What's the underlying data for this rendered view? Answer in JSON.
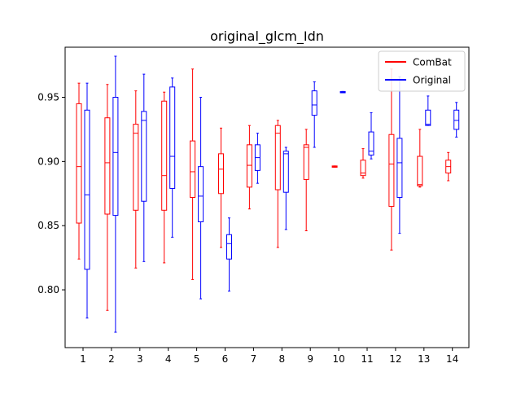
{
  "chart_data": {
    "type": "boxplot",
    "title": "original_glcm_Idn",
    "xlabel": "",
    "ylabel": "",
    "categories": [
      "1",
      "2",
      "3",
      "4",
      "5",
      "6",
      "7",
      "8",
      "9",
      "10",
      "11",
      "12",
      "13",
      "14"
    ],
    "ylim": [
      0.755,
      0.989
    ],
    "yticks": [
      0.8,
      0.85,
      0.9,
      0.95
    ],
    "ytick_labels": [
      "0.80",
      "0.85",
      "0.90",
      "0.95"
    ],
    "grid": false,
    "legend_position": "top-right",
    "series": [
      {
        "name": "ComBat",
        "color": "#ff0000",
        "boxes": [
          {
            "min": 0.824,
            "q1": 0.852,
            "median": 0.896,
            "q3": 0.945,
            "max": 0.961
          },
          {
            "min": 0.784,
            "q1": 0.859,
            "median": 0.899,
            "q3": 0.934,
            "max": 0.96
          },
          {
            "min": 0.817,
            "q1": 0.862,
            "median": 0.922,
            "q3": 0.929,
            "max": 0.955
          },
          {
            "min": 0.821,
            "q1": 0.862,
            "median": 0.889,
            "q3": 0.947,
            "max": 0.954
          },
          {
            "min": 0.808,
            "q1": 0.872,
            "median": 0.892,
            "q3": 0.916,
            "max": 0.972
          },
          {
            "min": 0.833,
            "q1": 0.875,
            "median": 0.894,
            "q3": 0.906,
            "max": 0.926
          },
          {
            "min": 0.863,
            "q1": 0.88,
            "median": 0.897,
            "q3": 0.913,
            "max": 0.928
          },
          {
            "min": 0.833,
            "q1": 0.878,
            "median": 0.922,
            "q3": 0.928,
            "max": 0.932
          },
          {
            "min": 0.846,
            "q1": 0.886,
            "median": 0.911,
            "q3": 0.913,
            "max": 0.925
          },
          {
            "min": 0.8955,
            "q1": 0.8955,
            "median": 0.896,
            "q3": 0.8965,
            "max": 0.8965
          },
          {
            "min": 0.887,
            "q1": 0.889,
            "median": 0.891,
            "q3": 0.901,
            "max": 0.91
          },
          {
            "min": 0.831,
            "q1": 0.865,
            "median": 0.898,
            "q3": 0.921,
            "max": 0.972
          },
          {
            "min": 0.88,
            "q1": 0.881,
            "median": 0.882,
            "q3": 0.904,
            "max": 0.925
          },
          {
            "min": 0.885,
            "q1": 0.891,
            "median": 0.896,
            "q3": 0.901,
            "max": 0.907
          }
        ]
      },
      {
        "name": "Original",
        "color": "#0000ff",
        "boxes": [
          {
            "min": 0.778,
            "q1": 0.816,
            "median": 0.874,
            "q3": 0.94,
            "max": 0.961
          },
          {
            "min": 0.767,
            "q1": 0.858,
            "median": 0.907,
            "q3": 0.95,
            "max": 0.982
          },
          {
            "min": 0.822,
            "q1": 0.869,
            "median": 0.932,
            "q3": 0.939,
            "max": 0.968
          },
          {
            "min": 0.841,
            "q1": 0.879,
            "median": 0.904,
            "q3": 0.958,
            "max": 0.965
          },
          {
            "min": 0.793,
            "q1": 0.853,
            "median": 0.873,
            "q3": 0.896,
            "max": 0.95
          },
          {
            "min": 0.799,
            "q1": 0.824,
            "median": 0.836,
            "q3": 0.843,
            "max": 0.856
          },
          {
            "min": 0.883,
            "q1": 0.893,
            "median": 0.903,
            "q3": 0.913,
            "max": 0.922
          },
          {
            "min": 0.847,
            "q1": 0.876,
            "median": 0.906,
            "q3": 0.908,
            "max": 0.911
          },
          {
            "min": 0.911,
            "q1": 0.936,
            "median": 0.944,
            "q3": 0.955,
            "max": 0.962
          },
          {
            "min": 0.9535,
            "q1": 0.9535,
            "median": 0.954,
            "q3": 0.9545,
            "max": 0.9545
          },
          {
            "min": 0.902,
            "q1": 0.905,
            "median": 0.908,
            "q3": 0.923,
            "max": 0.938
          },
          {
            "min": 0.844,
            "q1": 0.872,
            "median": 0.899,
            "q3": 0.918,
            "max": 0.966
          },
          {
            "min": 0.928,
            "q1": 0.928,
            "median": 0.929,
            "q3": 0.94,
            "max": 0.951
          },
          {
            "min": 0.919,
            "q1": 0.925,
            "median": 0.932,
            "q3": 0.94,
            "max": 0.946
          }
        ]
      }
    ]
  }
}
